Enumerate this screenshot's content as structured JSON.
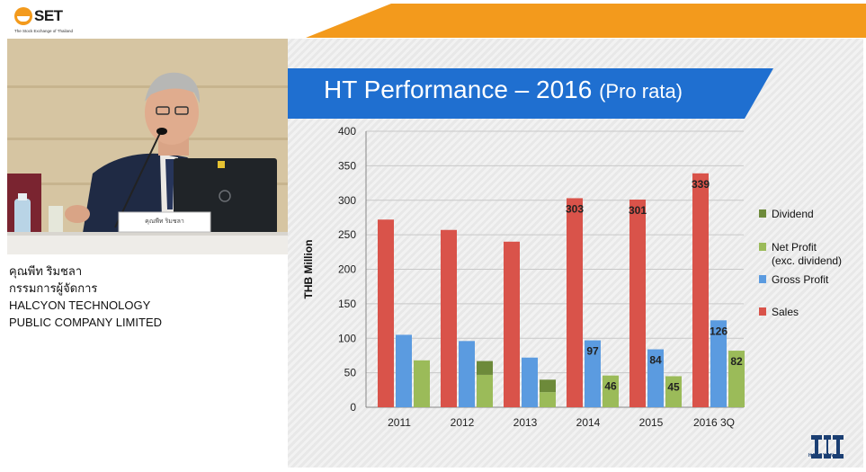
{
  "header": {
    "brand": "SET",
    "brand_sub": "The Stock Exchange of Thailand",
    "accent": "#f39a1c"
  },
  "speaker": {
    "name_th": "คุณพีท ริมชลา",
    "title_th": "กรรมการผู้จัดการ",
    "company_line1": "HALCYON TECHNOLOGY",
    "company_line2": "PUBLIC COMPANY LIMITED",
    "nameplate": "คุณพีท ริมชลา"
  },
  "slide": {
    "title_main": "HT Performance – 2016",
    "title_paren": "(Pro rata)",
    "logo_text": "HALCYON"
  },
  "chart_data": {
    "type": "bar",
    "categories": [
      "2011",
      "2012",
      "2013",
      "2014",
      "2015",
      "2016  3Q"
    ],
    "ylabel": "THB Million",
    "ylim": [
      0,
      400
    ],
    "yticks": [
      0,
      50,
      100,
      150,
      200,
      250,
      300,
      350,
      400
    ],
    "grid": true,
    "legend_position": "right",
    "series": [
      {
        "name": "Sales",
        "color": "#d9534a",
        "values": [
          272,
          257,
          240,
          303,
          301,
          339
        ],
        "labels": [
          "",
          "",
          "",
          "303",
          "301",
          "339"
        ]
      },
      {
        "name": "Gross Profit",
        "color": "#5b9be0",
        "values": [
          105,
          96,
          72,
          97,
          84,
          126
        ],
        "labels": [
          "",
          "",
          "",
          "97",
          "84",
          "126"
        ]
      },
      {
        "name": "Net Profit (exc. dividend)",
        "color": "#9bbb59",
        "values": [
          68,
          47,
          22,
          46,
          45,
          82
        ],
        "labels": [
          "",
          "",
          "",
          "46",
          "45",
          "82"
        ]
      },
      {
        "name": "Dividend",
        "color": "#6d8a3a",
        "values": [
          0,
          20,
          18,
          0,
          0,
          0
        ],
        "labels": [
          "",
          "",
          "",
          "",
          "",
          ""
        ]
      }
    ],
    "legend": [
      {
        "label": "Dividend",
        "color": "#6d8a3a"
      },
      {
        "label": "Net Profit",
        "label2": "(exc. dividend)",
        "color": "#9bbb59"
      },
      {
        "label": "Gross Profit",
        "color": "#5b9be0"
      },
      {
        "label": "Sales",
        "color": "#d9534a"
      }
    ]
  }
}
